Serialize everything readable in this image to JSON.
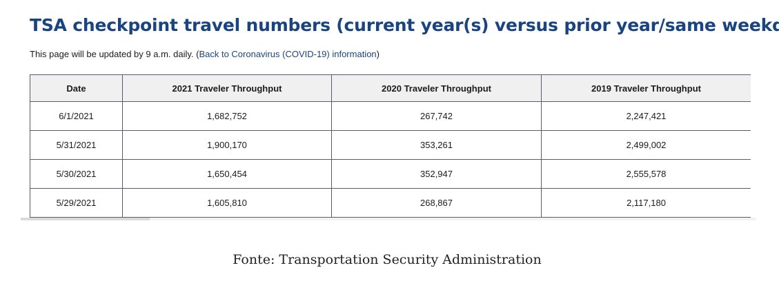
{
  "header": {
    "title": "TSA checkpoint travel numbers (current year(s) versus prior year/same weekday)",
    "note_prefix": "This page will be updated by 9 a.m. daily. (",
    "note_link": "Back to Coronavirus (COVID-19) information",
    "note_suffix": ")"
  },
  "table": {
    "columns": [
      "Date",
      "2021 Traveler Throughput",
      "2020 Traveler Throughput",
      "2019 Traveler Throughput"
    ],
    "rows": [
      [
        "6/1/2021",
        "1,682,752",
        "267,742",
        "2,247,421"
      ],
      [
        "5/31/2021",
        "1,900,170",
        "353,261",
        "2,499,002"
      ],
      [
        "5/30/2021",
        "1,650,454",
        "352,947",
        "2,555,578"
      ],
      [
        "5/29/2021",
        "1,605,810",
        "268,867",
        "2,117,180"
      ]
    ]
  },
  "footer": {
    "source": "Fonte: Transportation Security Administration"
  },
  "colors": {
    "title": "#1a4480",
    "link": "#1a4480",
    "header_bg": "#f0f0f0",
    "border": "#565c65"
  }
}
